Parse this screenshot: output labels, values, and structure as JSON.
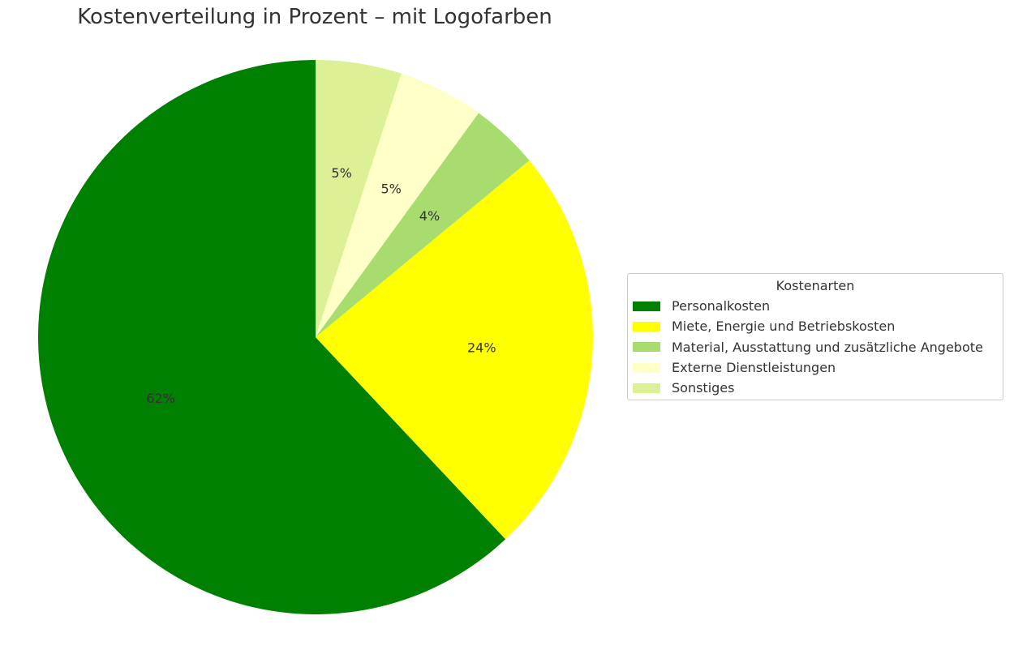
{
  "chart_data": {
    "type": "pie",
    "title": "Kostenverteilung in Prozent – mit Logofarben",
    "legend_title": "Kostenarten",
    "legend_position": "right",
    "start_angle": 90,
    "direction": "counterclockwise",
    "slices": [
      {
        "label": "Personalkosten",
        "value": 62,
        "display": "62%",
        "color": "#008000"
      },
      {
        "label": "Miete, Energie und Betriebskosten",
        "value": 24,
        "display": "24%",
        "color": "#ffff00"
      },
      {
        "label": "Material, Ausstattung und zusätzliche Angebote",
        "value": 4,
        "display": "4%",
        "color": "#a8dc6e"
      },
      {
        "label": "Externe Dienstleistungen",
        "value": 5,
        "display": "5%",
        "color": "#ffffc8"
      },
      {
        "label": "Sonstiges",
        "value": 5,
        "display": "5%",
        "color": "#dcf096"
      }
    ]
  }
}
